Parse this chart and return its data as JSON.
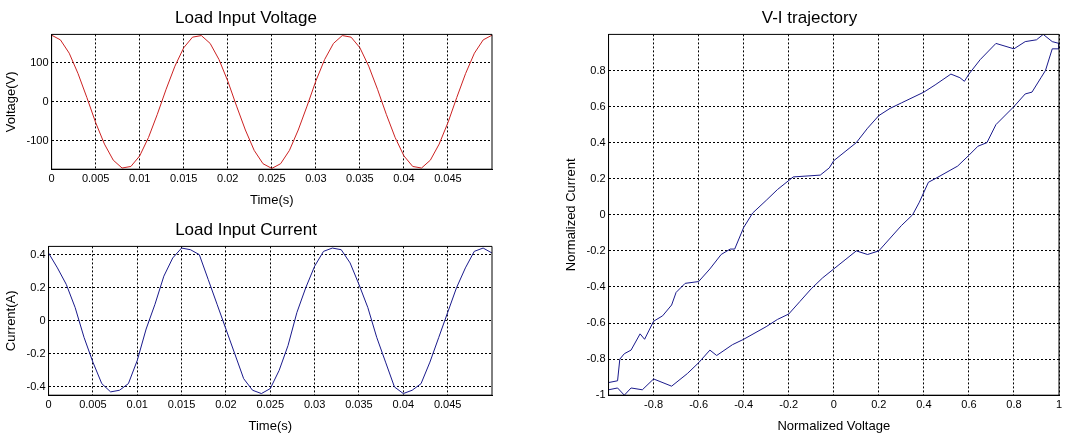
{
  "chart_data": [
    {
      "type": "line",
      "title": "Load Input Voltage",
      "xlabel": "Time(s)",
      "ylabel": "Voltage(V)",
      "color": "#cc2222",
      "grid": true,
      "xlim": [
        0,
        0.05
      ],
      "ylim": [
        -172,
        172
      ],
      "xticks": [
        0,
        0.005,
        0.01,
        0.015,
        0.02,
        0.025,
        0.03,
        0.035,
        0.04,
        0.045
      ],
      "yticks": [
        -100,
        0,
        100
      ],
      "x": [
        0,
        0.001,
        0.002,
        0.003,
        0.004,
        0.005,
        0.006,
        0.007,
        0.008,
        0.009,
        0.01,
        0.011,
        0.012,
        0.013,
        0.014,
        0.015,
        0.016,
        0.017,
        0.018,
        0.019,
        0.02,
        0.021,
        0.022,
        0.023,
        0.024,
        0.025,
        0.026,
        0.027,
        0.028,
        0.029,
        0.03,
        0.031,
        0.032,
        0.033,
        0.034,
        0.035,
        0.036,
        0.037,
        0.038,
        0.039,
        0.04,
        0.041,
        0.042,
        0.043,
        0.044,
        0.045,
        0.046,
        0.047,
        0.048,
        0.049,
        0.05
      ],
      "values": [
        170,
        158,
        124,
        72,
        11,
        -53,
        -108,
        -149,
        -169,
        -165,
        -138,
        -91,
        -32,
        32,
        91,
        138,
        165,
        169,
        149,
        108,
        53,
        -11,
        -72,
        -124,
        -158,
        -170,
        -158,
        -124,
        -72,
        -11,
        53,
        108,
        149,
        169,
        165,
        138,
        91,
        32,
        -32,
        -91,
        -138,
        -165,
        -169,
        -149,
        -108,
        -53,
        11,
        72,
        124,
        158,
        170
      ]
    },
    {
      "type": "line",
      "title": "Load Input Current",
      "xlabel": "Time(s)",
      "ylabel": "Current(A)",
      "color": "#1a1a8c",
      "grid": true,
      "xlim": [
        0,
        0.05
      ],
      "ylim": [
        -0.45,
        0.45
      ],
      "xticks": [
        0,
        0.005,
        0.01,
        0.015,
        0.02,
        0.025,
        0.03,
        0.035,
        0.04,
        0.045
      ],
      "yticks": [
        -0.4,
        -0.2,
        0,
        0.2,
        0.4
      ],
      "x": [
        0,
        0.001,
        0.002,
        0.003,
        0.004,
        0.005,
        0.006,
        0.007,
        0.008,
        0.009,
        0.01,
        0.011,
        0.012,
        0.013,
        0.014,
        0.015,
        0.016,
        0.017,
        0.018,
        0.019,
        0.02,
        0.021,
        0.022,
        0.023,
        0.024,
        0.025,
        0.026,
        0.027,
        0.028,
        0.029,
        0.03,
        0.031,
        0.032,
        0.033,
        0.034,
        0.035,
        0.036,
        0.037,
        0.038,
        0.039,
        0.04,
        0.041,
        0.042,
        0.043,
        0.044,
        0.045,
        0.046,
        0.047,
        0.048,
        0.049,
        0.05
      ],
      "values": [
        0.41,
        0.32,
        0.22,
        0.08,
        -0.1,
        -0.25,
        -0.38,
        -0.43,
        -0.42,
        -0.38,
        -0.24,
        -0.05,
        0.1,
        0.27,
        0.38,
        0.44,
        0.43,
        0.4,
        0.25,
        0.1,
        -0.05,
        -0.2,
        -0.35,
        -0.42,
        -0.44,
        -0.41,
        -0.3,
        -0.15,
        0.05,
        0.2,
        0.33,
        0.42,
        0.44,
        0.43,
        0.35,
        0.22,
        0.08,
        -0.1,
        -0.25,
        -0.4,
        -0.44,
        -0.42,
        -0.38,
        -0.25,
        -0.1,
        0.05,
        0.2,
        0.32,
        0.42,
        0.44,
        0.41
      ]
    },
    {
      "type": "line",
      "title": "V-I trajectory",
      "xlabel": "Normalized Voltage",
      "ylabel": "Normalized Current",
      "color": "#1a1a8c",
      "grid": true,
      "xlim": [
        -1,
        1
      ],
      "ylim": [
        -1,
        1
      ],
      "xticks": [
        -0.8,
        -0.6,
        -0.4,
        -0.2,
        0,
        0.2,
        0.4,
        0.6,
        0.8,
        1
      ],
      "yticks": [
        -1,
        -0.8,
        -0.6,
        -0.4,
        -0.2,
        0,
        0.2,
        0.4,
        0.6,
        0.8
      ],
      "x": [
        -1,
        -0.96,
        -0.95,
        -0.93,
        -0.9,
        -0.86,
        -0.84,
        -0.8,
        -0.76,
        -0.72,
        -0.7,
        -0.66,
        -0.6,
        -0.55,
        -0.5,
        -0.46,
        -0.44,
        -0.4,
        -0.36,
        -0.3,
        -0.25,
        -0.18,
        -0.06,
        -0.02,
        0,
        0.05,
        0.1,
        0.15,
        0.2,
        0.25,
        0.3,
        0.4,
        0.45,
        0.52,
        0.56,
        0.58,
        0.6,
        0.65,
        0.72,
        0.8,
        0.85,
        0.9,
        0.93,
        0.97,
        1,
        1,
        0.97,
        0.94,
        0.92,
        0.88,
        0.85,
        0.8,
        0.72,
        0.68,
        0.64,
        0.6,
        0.55,
        0.45,
        0.42,
        0.38,
        0.35,
        0.3,
        0.2,
        0.15,
        0.1,
        0.05,
        0,
        -0.05,
        -0.1,
        -0.15,
        -0.2,
        -0.25,
        -0.3,
        -0.4,
        -0.45,
        -0.52,
        -0.55,
        -0.6,
        -0.65,
        -0.72,
        -0.8,
        -0.85,
        -0.9,
        -0.93,
        -0.96,
        -1
      ],
      "values": [
        -0.93,
        -0.92,
        -0.8,
        -0.77,
        -0.75,
        -0.66,
        -0.69,
        -0.59,
        -0.56,
        -0.5,
        -0.43,
        -0.38,
        -0.37,
        -0.3,
        -0.22,
        -0.19,
        -0.19,
        -0.07,
        0.01,
        0.08,
        0.14,
        0.21,
        0.22,
        0.26,
        0.3,
        0.35,
        0.4,
        0.48,
        0.55,
        0.59,
        0.62,
        0.68,
        0.72,
        0.78,
        0.76,
        0.74,
        0.78,
        0.86,
        0.95,
        0.92,
        0.96,
        0.97,
        1,
        0.96,
        0.95,
        0.92,
        0.92,
        0.8,
        0.76,
        0.68,
        0.67,
        0.6,
        0.5,
        0.4,
        0.38,
        0.33,
        0.27,
        0.2,
        0.18,
        0.07,
        0,
        -0.06,
        -0.2,
        -0.22,
        -0.2,
        -0.25,
        -0.3,
        -0.35,
        -0.41,
        -0.48,
        -0.55,
        -0.58,
        -0.62,
        -0.69,
        -0.72,
        -0.78,
        -0.75,
        -0.82,
        -0.88,
        -0.95,
        -0.91,
        -0.97,
        -0.96,
        -1,
        -0.96,
        -0.97
      ]
    }
  ]
}
